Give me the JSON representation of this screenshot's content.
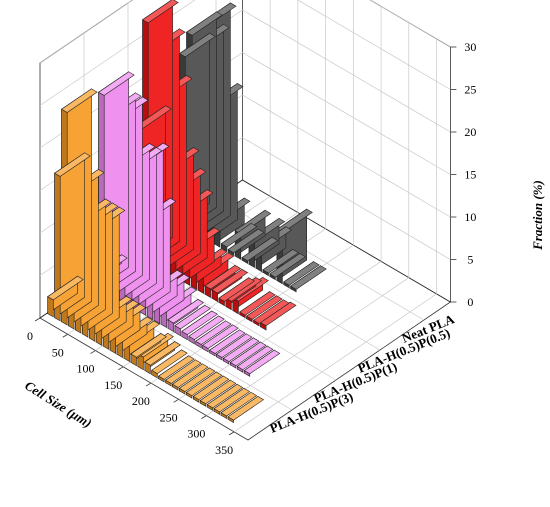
{
  "chart_data": {
    "type": "bar3d",
    "x": {
      "label": "Cell Size (μm)",
      "bin_width": 12.5,
      "ticks": [
        0,
        50,
        100,
        150,
        200,
        250,
        300,
        350
      ],
      "range": [
        0,
        375
      ]
    },
    "y_axis": {
      "label": "Fraction (%)",
      "range": [
        0,
        30
      ],
      "ticks": [
        0,
        5,
        10,
        15,
        20,
        25,
        30
      ]
    },
    "series": [
      {
        "name": "Neat PLA",
        "color": "#4a4a4a",
        "bins": [
          6.25,
          18.75,
          31.25,
          43.75,
          56.25,
          68.75,
          81.25,
          93.75,
          106.25,
          118.75,
          131.25,
          143.75,
          156.25,
          168.75,
          181.25,
          193.75,
          206.25
        ],
        "values": [
          20,
          23,
          22,
          25,
          16,
          3,
          0.5,
          0.3,
          3,
          0.3,
          3,
          2.5,
          0.3,
          0.3,
          6,
          0.3,
          0.3
        ]
      },
      {
        "name": "PLA-H(0.5)P(0.5)",
        "color": "#ee1111",
        "bins": [
          6.25,
          18.75,
          31.25,
          43.75,
          56.25,
          68.75,
          81.25,
          93.75,
          106.25,
          118.75,
          131.25,
          143.75,
          156.25,
          168.75,
          181.25,
          193.75,
          206.25,
          218.75,
          231.25
        ],
        "values": [
          15,
          28,
          25,
          20,
          12,
          10,
          8,
          4,
          2,
          2,
          1,
          1,
          0.5,
          1,
          1.5,
          0.3,
          0.3,
          0.3,
          0.5
        ]
      },
      {
        "name": "PLA-H(0.5)P(1)",
        "color": "#ee88ee",
        "bins": [
          6.25,
          18.75,
          31.25,
          43.75,
          56.25,
          68.75,
          81.25,
          93.75,
          106.25,
          118.75,
          131.25,
          143.75,
          156.25,
          168.75,
          181.25,
          193.75,
          206.25,
          218.75,
          231.25,
          243.75,
          256.25,
          268.75,
          281.25
        ],
        "values": [
          1,
          23,
          21,
          21,
          16,
          16,
          17,
          11,
          3,
          3,
          2,
          1,
          0.8,
          0.6,
          0.5,
          0.4,
          0.4,
          0.3,
          0.3,
          0.3,
          0.3,
          0.3,
          0.3
        ]
      },
      {
        "name": "PLA-H(0.5)P(3)",
        "color": "#f59a22",
        "bins": [
          6.25,
          18.75,
          31.25,
          43.75,
          56.25,
          68.75,
          81.25,
          93.75,
          106.25,
          118.75,
          131.25,
          143.75,
          156.25,
          168.75,
          181.25,
          193.75,
          206.25,
          218.75,
          231.25,
          243.75,
          256.25,
          268.75,
          281.25,
          293.75,
          306.25,
          318.75,
          331.25
        ],
        "values": [
          2,
          17,
          25,
          16,
          13,
          13,
          13,
          3,
          3,
          3,
          2,
          2,
          1,
          1.5,
          1,
          0.5,
          0.3,
          0.3,
          0.3,
          0.3,
          0.3,
          0.3,
          0.3,
          0.3,
          0.3,
          0.3,
          0.3
        ]
      }
    ]
  }
}
